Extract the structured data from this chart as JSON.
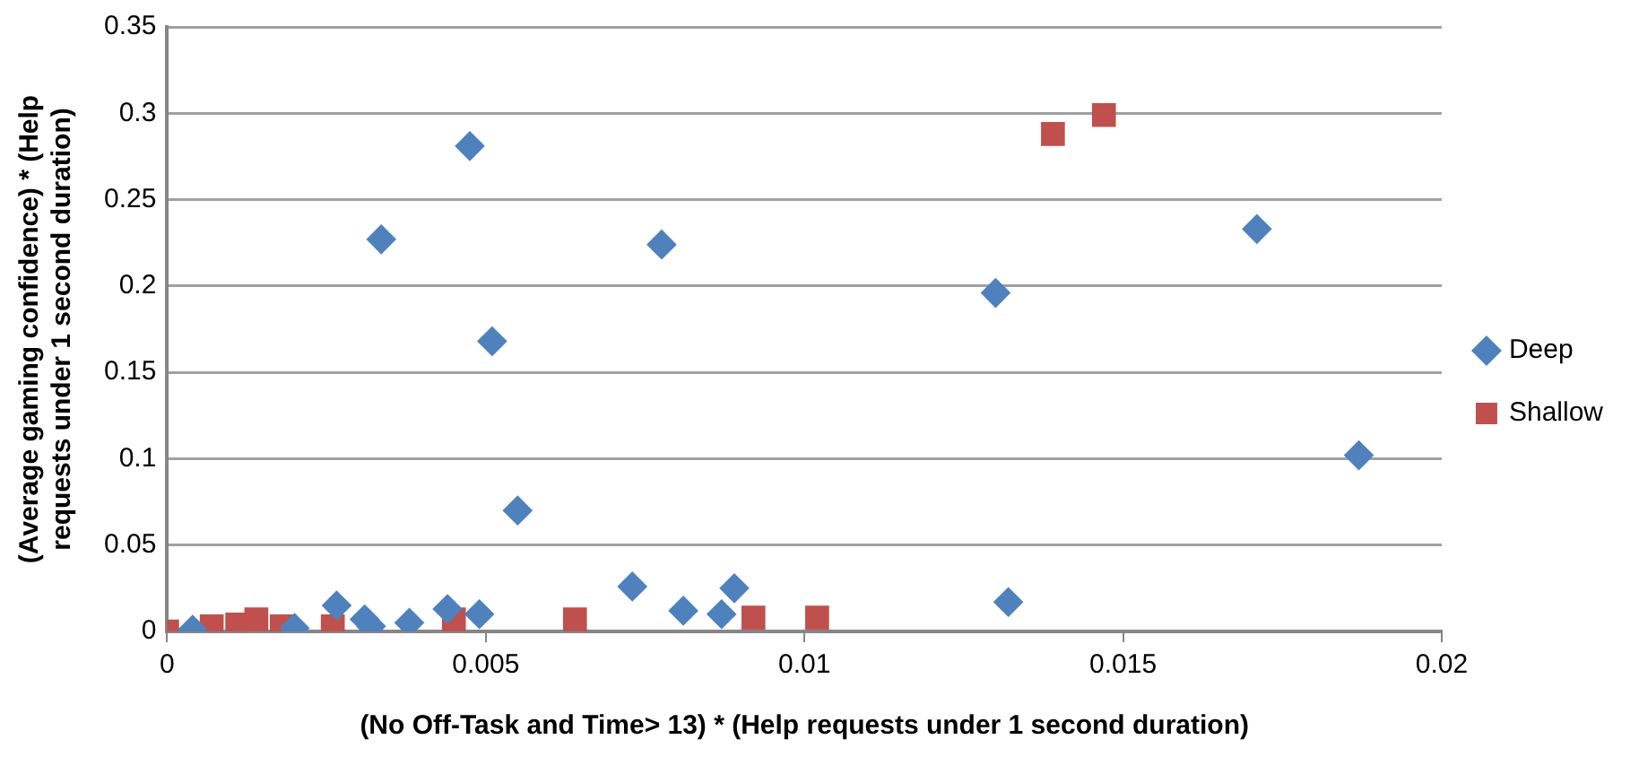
{
  "chart_data": {
    "type": "scatter",
    "xlabel": "(No Off-Task and Time> 13) * (Help requests under 1 second duration)",
    "ylabel": "(Average gaming confidence) * (Help requests under 1 second duration)",
    "xlim": [
      0,
      0.02
    ],
    "xticks": [
      0,
      0.005,
      0.01,
      0.015,
      0.02
    ],
    "ylim": [
      0,
      0.35
    ],
    "yticks": [
      0,
      0.05,
      0.1,
      0.15,
      0.2,
      0.25,
      0.3,
      0.35
    ],
    "grid": "y",
    "legend": "right",
    "series": [
      {
        "name": "Deep",
        "color": "#4f81bd",
        "marker": "diamond",
        "x": [
          0.00336,
          0.00475,
          0.0051,
          0.0055,
          0.00776,
          0.013,
          0.0171,
          0.0187,
          0.00266,
          0.0031,
          0.0032,
          0.0038,
          0.0044,
          0.0049,
          0.002,
          0.0004,
          0.0073,
          0.0081,
          0.0087,
          0.0089,
          0.0132
        ],
        "values": [
          0.227,
          0.281,
          0.168,
          0.07,
          0.224,
          0.196,
          0.233,
          0.102,
          0.015,
          0.007,
          0.003,
          0.005,
          0.013,
          0.01,
          0.002,
          0.001,
          0.026,
          0.012,
          0.01,
          0.025,
          0.017
        ]
      },
      {
        "name": "Shallow",
        "color": "#c0504d",
        "marker": "square",
        "x": [
          0.0139,
          0.0147,
          0,
          0.0007,
          0.0011,
          0.0014,
          0.0018,
          0.0026,
          0.0045,
          0.0064,
          0.0092,
          0.0102
        ],
        "values": [
          0.288,
          0.299,
          0,
          0.003,
          0.004,
          0.007,
          0.003,
          0.003,
          0.007,
          0.007,
          0.008,
          0.008
        ]
      }
    ]
  }
}
